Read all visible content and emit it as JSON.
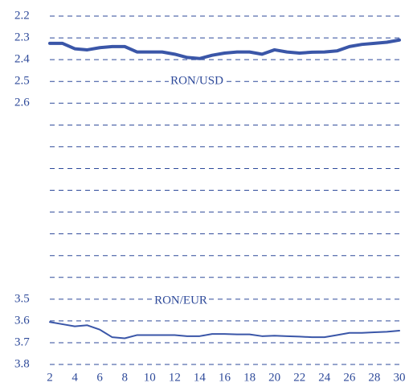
{
  "chart_data": {
    "type": "line",
    "x": [
      2,
      3,
      4,
      5,
      6,
      7,
      8,
      9,
      10,
      11,
      12,
      13,
      14,
      15,
      16,
      17,
      18,
      19,
      20,
      21,
      22,
      23,
      24,
      25,
      26,
      27,
      28,
      29,
      30
    ],
    "series": [
      {
        "name": "RON/USD",
        "color": "#3a56a8",
        "width": 4,
        "values": [
          2.325,
          2.325,
          2.35,
          2.355,
          2.345,
          2.34,
          2.34,
          2.365,
          2.365,
          2.365,
          2.375,
          2.39,
          2.395,
          2.38,
          2.37,
          2.365,
          2.365,
          2.375,
          2.355,
          2.365,
          2.37,
          2.366,
          2.365,
          2.36,
          2.34,
          2.33,
          2.325,
          2.32,
          2.31
        ]
      },
      {
        "name": "RON/EUR",
        "color": "#3a56a8",
        "width": 2,
        "values": [
          3.605,
          3.615,
          3.625,
          3.62,
          3.64,
          3.675,
          3.68,
          3.665,
          3.665,
          3.665,
          3.665,
          3.67,
          3.67,
          3.66,
          3.66,
          3.662,
          3.662,
          3.67,
          3.668,
          3.67,
          3.672,
          3.675,
          3.675,
          3.665,
          3.655,
          3.655,
          3.652,
          3.65,
          3.645
        ]
      }
    ],
    "xlim": [
      2,
      30
    ],
    "xticks": [
      2,
      4,
      6,
      8,
      10,
      12,
      14,
      16,
      18,
      20,
      22,
      24,
      26,
      28,
      30
    ],
    "ylim": [
      2.2,
      3.8
    ],
    "y_inverted": true,
    "yticks": [
      2.2,
      2.3,
      2.4,
      2.5,
      2.6,
      3.5,
      3.6,
      3.7,
      3.8
    ],
    "ygrid": [
      2.2,
      2.3,
      2.4,
      2.5,
      2.6,
      2.7,
      2.8,
      2.9,
      3.0,
      3.1,
      3.2,
      3.3,
      3.4,
      3.5,
      3.6,
      3.7,
      3.8
    ],
    "grid": true
  }
}
